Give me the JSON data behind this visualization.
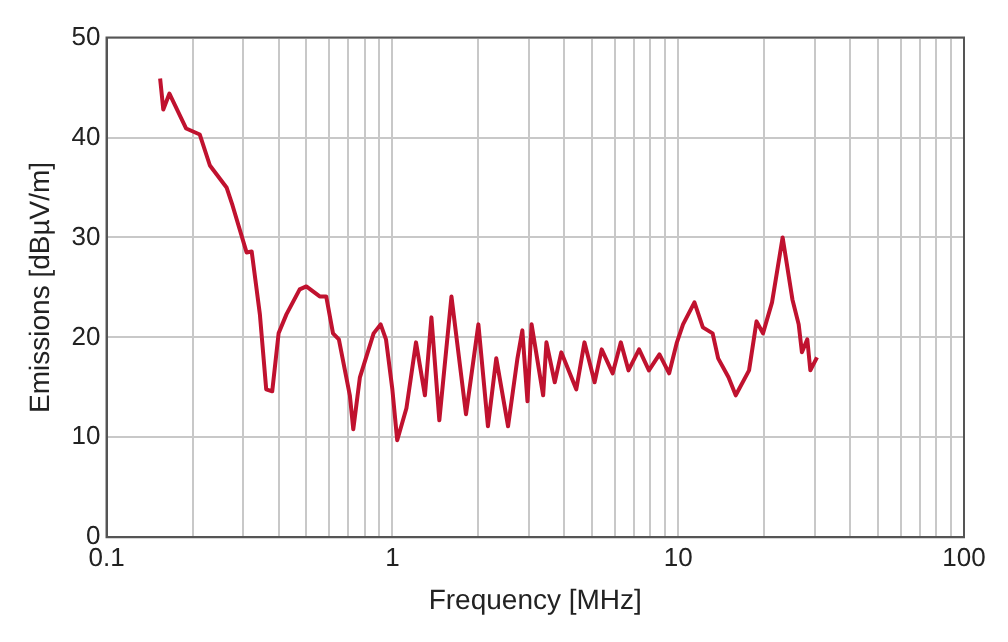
{
  "chart_data": {
    "type": "line",
    "xlabel": "Frequency [MHz]",
    "ylabel": "Emissions [dBµV/m]",
    "log": "x",
    "grid": true,
    "legend": false,
    "marker": "none",
    "line_style": "solid",
    "xlim": [
      0.1,
      100
    ],
    "ylim": [
      0,
      50
    ],
    "xticks": [
      {
        "value": 0.1,
        "label": "0.1"
      },
      {
        "value": 0.2,
        "label": null
      },
      {
        "value": 0.3,
        "label": null
      },
      {
        "value": 0.4,
        "label": null
      },
      {
        "value": 0.5,
        "label": null
      },
      {
        "value": 0.6,
        "label": null
      },
      {
        "value": 0.7,
        "label": null
      },
      {
        "value": 0.8,
        "label": null
      },
      {
        "value": 0.9,
        "label": null
      },
      1,
      {
        "value": 2,
        "label": null
      },
      {
        "value": 3,
        "label": null
      },
      {
        "value": 4,
        "label": null
      },
      {
        "value": 5,
        "label": null
      },
      {
        "value": 6,
        "label": null
      },
      {
        "value": 7,
        "label": null
      },
      {
        "value": 8,
        "label": null
      },
      {
        "value": 9,
        "label": null
      },
      10,
      {
        "value": 20,
        "label": null
      },
      {
        "value": 30,
        "label": null
      },
      {
        "value": 40,
        "label": null
      },
      {
        "value": 50,
        "label": null
      },
      {
        "value": 60,
        "label": null
      },
      {
        "value": 70,
        "label": null
      },
      {
        "value": 80,
        "label": null
      },
      {
        "value": 90,
        "label": null
      },
      100
    ],
    "yticks": [
      0,
      10,
      20,
      30,
      40,
      50
    ],
    "series": [
      {
        "color": "#c0122f",
        "x": [
          0.154,
          0.158,
          0.166,
          0.19,
          0.212,
          0.23,
          0.263,
          0.276,
          0.309,
          0.322,
          0.344,
          0.362,
          0.38,
          0.4,
          0.426,
          0.474,
          0.5,
          0.557,
          0.587,
          0.62,
          0.65,
          0.71,
          0.73,
          0.77,
          0.86,
          0.91,
          0.95,
          1.0,
          1.04,
          1.12,
          1.21,
          1.3,
          1.37,
          1.46,
          1.61,
          1.81,
          2.0,
          2.16,
          2.31,
          2.54,
          2.74,
          2.85,
          2.97,
          3.07,
          3.37,
          3.46,
          3.7,
          3.9,
          4.4,
          4.7,
          5.1,
          5.4,
          5.9,
          6.3,
          6.7,
          7.3,
          7.9,
          8.6,
          9.3,
          9.9,
          10.4,
          11.4,
          12.2,
          13.2,
          13.8,
          15,
          15.9,
          17.7,
          18.8,
          19.8,
          21.3,
          23.2,
          25.1,
          26.4,
          27.1,
          28.3,
          29,
          30.6
        ],
        "values": [
          45.9,
          42.8,
          44.4,
          40.9,
          40.3,
          37.2,
          35,
          33.2,
          28.5,
          28.6,
          22.3,
          14.8,
          14.6,
          20.4,
          22.3,
          24.8,
          25.1,
          24.1,
          24.1,
          20.4,
          19.8,
          14.2,
          10.8,
          16,
          20.4,
          21.3,
          19.8,
          14.8,
          9.7,
          12.9,
          19.5,
          14.2,
          22,
          11.7,
          24.1,
          12.3,
          21.3,
          11.1,
          17.9,
          11.1,
          17.9,
          20.7,
          13.6,
          21.3,
          14.2,
          19.5,
          15.5,
          18.5,
          14.8,
          19.5,
          15.5,
          18.8,
          16.4,
          19.5,
          16.7,
          18.8,
          16.7,
          18.3,
          16.4,
          19.5,
          21.3,
          23.5,
          21,
          20.4,
          17.9,
          16,
          14.2,
          16.7,
          21.6,
          20.4,
          23.5,
          30,
          23.8,
          21.3,
          18.5,
          19.8,
          16.7,
          18
        ]
      }
    ]
  }
}
